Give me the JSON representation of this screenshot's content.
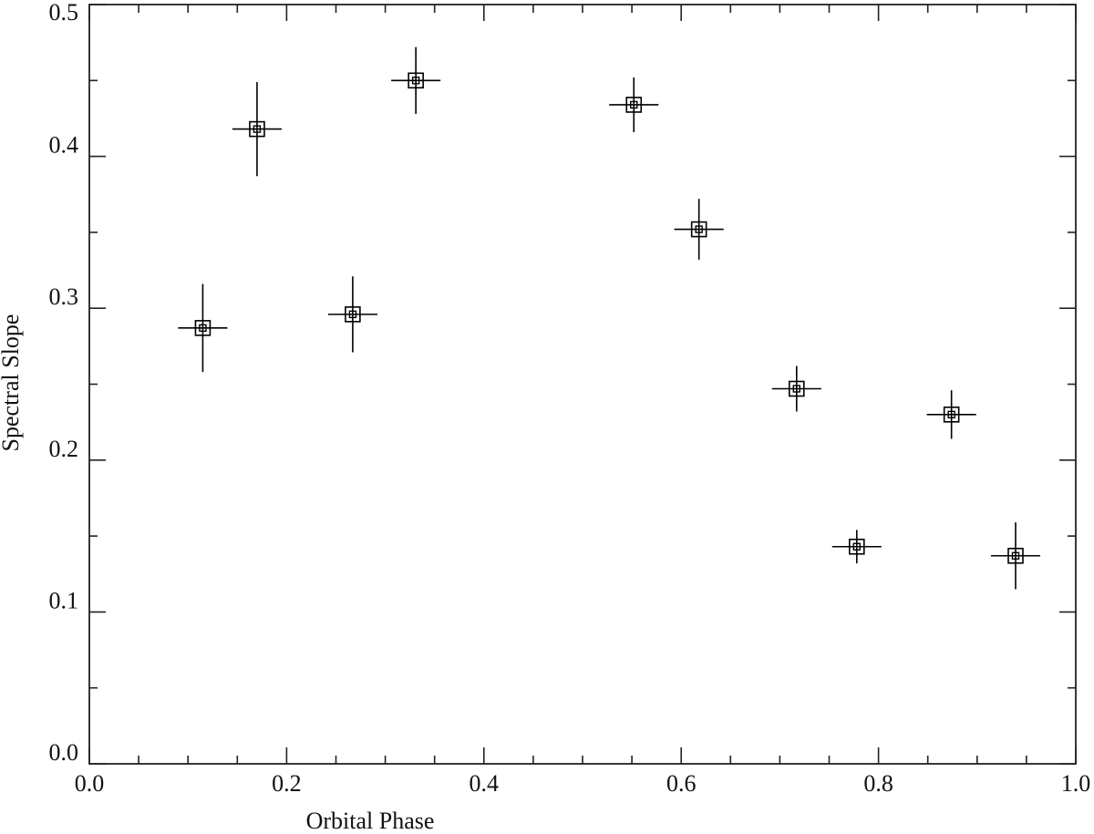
{
  "chart_data": {
    "type": "scatter",
    "xlabel": "Orbital Phase",
    "ylabel": "Spectral Slope",
    "xlim": [
      0,
      1
    ],
    "ylim": [
      0,
      0.5
    ],
    "xticks": [
      {
        "value": 0,
        "label": "0.0"
      },
      0.2,
      0.4,
      0.6,
      0.8,
      {
        "value": 1,
        "label": "1.0"
      }
    ],
    "yticks": [
      {
        "value": 0,
        "label": "0.0"
      },
      0.1,
      0.2,
      0.3,
      0.4,
      0.5
    ],
    "xminorticks": [
      0.05,
      0.1,
      0.15,
      0.25,
      0.3,
      0.35,
      0.45,
      0.5,
      0.55,
      0.65,
      0.7,
      0.75,
      0.85,
      0.9,
      0.95
    ],
    "yminorticks": [
      0.05,
      0.15,
      0.25,
      0.35,
      0.45
    ],
    "color": "#000000",
    "series": [
      {
        "x": [
          0.115,
          0.17,
          0.267,
          0.331,
          0.552,
          0.618,
          0.717,
          0.778,
          0.874,
          0.939
        ],
        "values": [
          0.287,
          0.418,
          0.296,
          0.45,
          0.434,
          0.352,
          0.247,
          0.143,
          0.23,
          0.137
        ],
        "yerr": [
          0.029,
          0.031,
          0.025,
          0.022,
          0.018,
          0.02,
          0.015,
          0.011,
          0.016,
          0.022
        ],
        "xerr": [
          0.025,
          0.025,
          0.025,
          0.025,
          0.025,
          0.025,
          0.025,
          0.025,
          0.025,
          0.025
        ]
      }
    ]
  }
}
